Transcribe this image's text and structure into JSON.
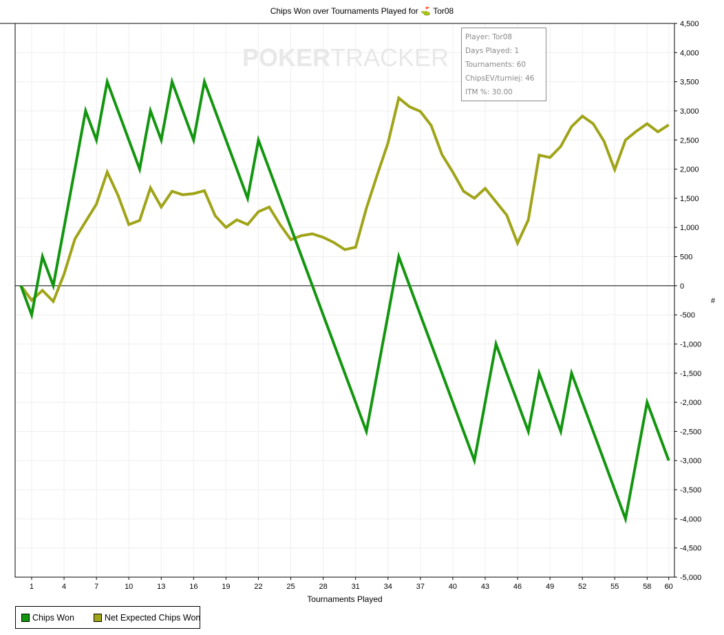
{
  "chart_data": {
    "type": "line",
    "title": "Chips Won over Tournaments Played for",
    "player_icon": "player-flag-icon",
    "player": "Tor08",
    "xlabel": "Tournaments Played",
    "ylabel": "#",
    "xlim": [
      0,
      60
    ],
    "ylim": [
      -5000,
      4500
    ],
    "x_ticks": [
      1,
      4,
      7,
      10,
      13,
      16,
      19,
      22,
      25,
      28,
      31,
      34,
      37,
      40,
      43,
      46,
      49,
      52,
      55,
      58,
      60
    ],
    "y_ticks": [
      4500,
      4000,
      3500,
      3000,
      2500,
      2000,
      1500,
      1000,
      500,
      0,
      -500,
      -1000,
      -1500,
      -2000,
      -2500,
      -3000,
      -3500,
      -4000,
      -4500,
      -5000
    ],
    "y_tick_labels": [
      "4,500",
      "4,000",
      "3,500",
      "3,000",
      "2,500",
      "2,000",
      "1,500",
      "1,000",
      "500",
      "0",
      "-500",
      "-1,000",
      "-1,500",
      "-2,000",
      "-2,500",
      "-3,000",
      "-3,500",
      "-4,000",
      "-4,500",
      "-5,000"
    ],
    "grid": true,
    "legend_position": "bottom-left",
    "series": [
      {
        "name": "Chips Won",
        "color": "#13960f",
        "values": [
          0,
          -500,
          500,
          0,
          1000,
          2000,
          3000,
          2500,
          3500,
          3000,
          2500,
          2000,
          3000,
          2500,
          3500,
          3000,
          2500,
          3500,
          3000,
          2500,
          2000,
          1500,
          2500,
          2000,
          1500,
          1000,
          500,
          0,
          -500,
          -1000,
          -1500,
          -2000,
          -2500,
          -1500,
          -500,
          500,
          0,
          -500,
          -1000,
          -1500,
          -2000,
          -2500,
          -3000,
          -2000,
          -1000,
          -1500,
          -2000,
          -2500,
          -1500,
          -2000,
          -2500,
          -1500,
          -2000,
          -2500,
          -3000,
          -3500,
          -4000,
          -3000,
          -2000,
          -2500,
          -3000
        ]
      },
      {
        "name": "Net Expected Chips Won",
        "color": "#a0a418",
        "values": [
          0,
          -250,
          -80,
          -270,
          200,
          800,
          1100,
          1400,
          1950,
          1550,
          1050,
          1120,
          1680,
          1350,
          1620,
          1560,
          1580,
          1630,
          1200,
          1000,
          1130,
          1050,
          1270,
          1350,
          1050,
          790,
          860,
          890,
          830,
          740,
          620,
          660,
          1330,
          1900,
          2450,
          3220,
          3070,
          2990,
          2750,
          2250,
          1950,
          1620,
          1500,
          1670,
          1440,
          1210,
          730,
          1130,
          2240,
          2200,
          2390,
          2730,
          2910,
          2780,
          2480,
          1990,
          2500,
          2650,
          2780,
          2640,
          2760
        ]
      }
    ]
  },
  "watermark": {
    "bold": "POKER",
    "thin": "TRACKER",
    "chip": "O"
  },
  "tooltip": [
    "Player: Tor08",
    "Days Played: 1",
    "Tournaments: 60",
    "ChipsEV/turniej: 46",
    "ITM %: 30.00"
  ]
}
